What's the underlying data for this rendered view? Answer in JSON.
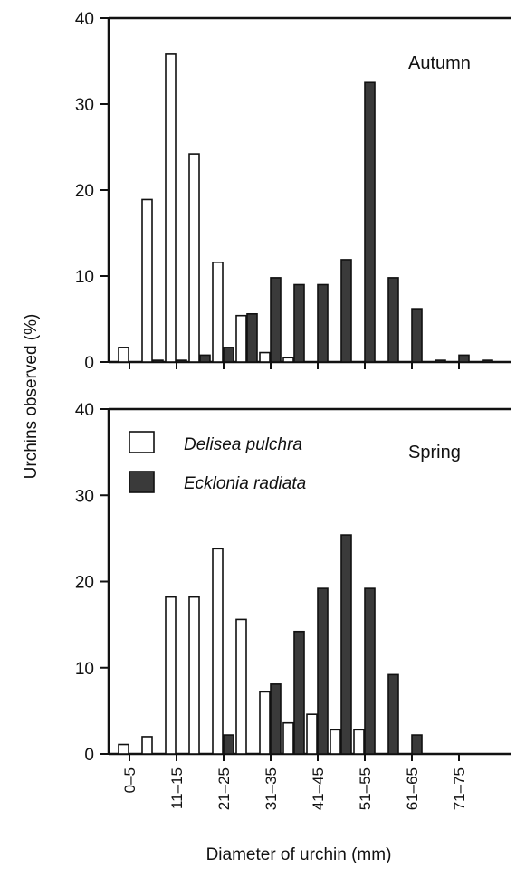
{
  "chart_data": {
    "type": "bar",
    "ylabel": "Urchins observed (%)",
    "xlabel": "Diameter of urchin (mm)",
    "categories": [
      "0–5",
      "6–10",
      "11–15",
      "16–20",
      "21–25",
      "26–30",
      "31–35",
      "36–40",
      "41–45",
      "46–50",
      "51–55",
      "56–60",
      "61–65",
      "66–70",
      "71–75",
      "76–80"
    ],
    "shown_category_labels": [
      "0–5",
      "11–15",
      "21–25",
      "31–35",
      "41–45",
      "51–55",
      "61–65",
      "71–75"
    ],
    "ylim": [
      0,
      40
    ],
    "yticks": [
      "0",
      "10",
      "20",
      "30",
      "40"
    ],
    "legend": {
      "placement": "upper-left of lower panel",
      "entries": [
        {
          "label": "Delisea pulchra",
          "color": "#ffffff"
        },
        {
          "label": "Ecklonia radiata",
          "color": "#3a3a3a"
        }
      ]
    },
    "panels": [
      {
        "label": "Autumn",
        "series": [
          {
            "name": "Delisea pulchra",
            "values": [
              1.7,
              18.9,
              35.8,
              24.2,
              11.6,
              5.4,
              1.1,
              0.5,
              0,
              0,
              0,
              0,
              0,
              0,
              0,
              0
            ]
          },
          {
            "name": "Ecklonia radiata",
            "values": [
              0,
              0.2,
              0.2,
              0.8,
              1.7,
              5.6,
              9.8,
              9.0,
              9.0,
              11.9,
              32.5,
              9.8,
              6.2,
              0.2,
              0.8,
              0.2
            ]
          }
        ]
      },
      {
        "label": "Spring",
        "series": [
          {
            "name": "Delisea pulchra",
            "values": [
              1.1,
              2.0,
              18.2,
              18.2,
              23.8,
              15.6,
              7.2,
              3.6,
              4.6,
              2.8,
              2.8,
              0,
              0,
              0,
              0,
              0
            ]
          },
          {
            "name": "Ecklonia radiata",
            "values": [
              0,
              0,
              0,
              0,
              2.2,
              0,
              8.1,
              14.2,
              19.2,
              25.4,
              19.2,
              9.2,
              2.2,
              0,
              0,
              0
            ]
          }
        ]
      }
    ]
  }
}
